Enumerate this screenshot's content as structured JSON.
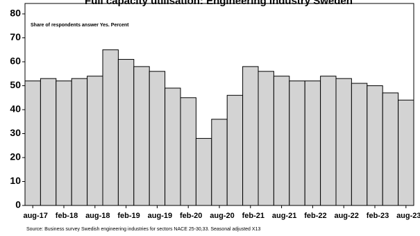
{
  "chart_data": {
    "type": "bar",
    "title": "Full capacity utilisation: Engineering industry Sweden",
    "annotation": "Share of respondents answer Yes. Percent",
    "source": "Source: Business survey Swedish engineering industries for sectors NACE 25-30,33. Seasonal adjusted X13",
    "categories": [
      "aug-17",
      null,
      "feb-18",
      null,
      "aug-18",
      null,
      "feb-19",
      null,
      "aug-19",
      null,
      "feb-20",
      null,
      "aug-20",
      null,
      "feb-21",
      null,
      "aug-21",
      null,
      "feb-22",
      null,
      "aug-22",
      null,
      "feb-23",
      null,
      "aug-23"
    ],
    "values": [
      52,
      53,
      52,
      53,
      54,
      65,
      61,
      58,
      56,
      49,
      45,
      28,
      36,
      46,
      58,
      56,
      54,
      52,
      52,
      54,
      53,
      51,
      50,
      47,
      44
    ],
    "color": "#d3d3d3",
    "ylim": [
      0,
      80
    ],
    "yticks": [
      0,
      10,
      20,
      30,
      40,
      50,
      60,
      70,
      80
    ],
    "grid": false
  }
}
